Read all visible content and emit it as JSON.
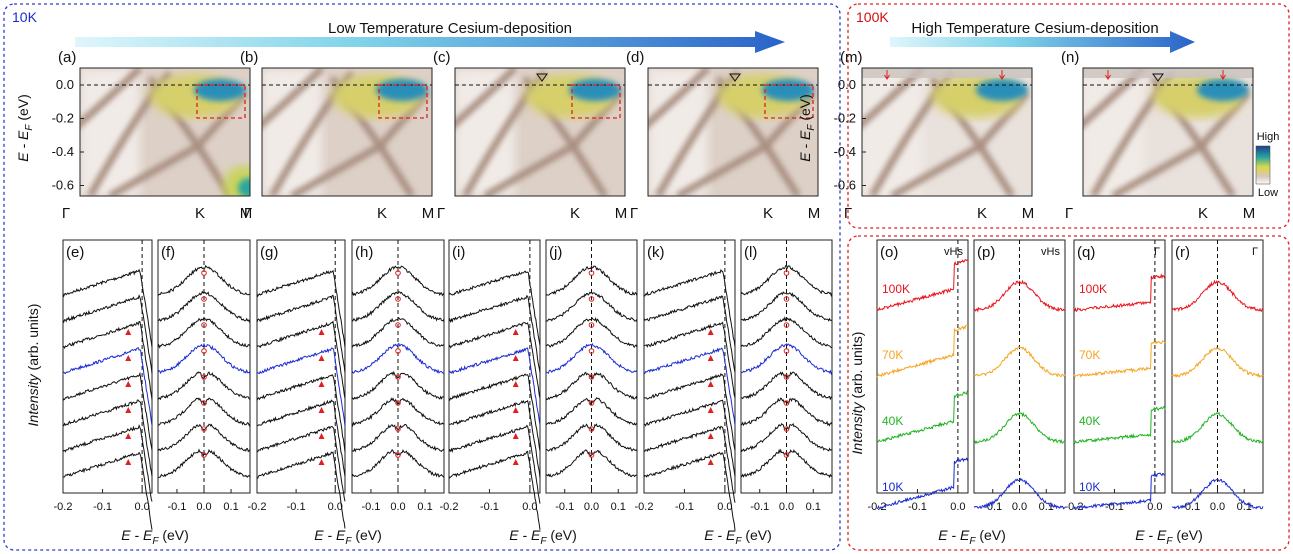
{
  "left_group": {
    "temperature": "10K",
    "title": "Low Temperature Cesium-deposition"
  },
  "right_group": {
    "temperature": "100K",
    "title": "High Temperature Cesium-deposition"
  },
  "dispersion": {
    "panels": [
      "(a)",
      "(b)",
      "(c)",
      "(d)",
      "(m)",
      "(n)"
    ],
    "y_axis_label": {
      "a": "E - E",
      "sub": "F",
      "b": " (eV)"
    },
    "y_ticks": [
      "0.0",
      "-0.2",
      "-0.4",
      "-0.6"
    ],
    "k_points": [
      "Γ",
      "K",
      "M"
    ],
    "colorbar": {
      "high": "High",
      "low": "Low"
    }
  },
  "edc": {
    "panels": [
      "(e)",
      "(f)",
      "(g)",
      "(h)",
      "(i)",
      "(j)",
      "(k)",
      "(l)"
    ],
    "x_ticks_left": [
      "-0.2",
      "-0.1",
      "0.0"
    ],
    "x_ticks_right": [
      "-0.1",
      "0.0",
      "0.1"
    ],
    "x_axis_label": {
      "a": "E - E",
      "sub": "F",
      "b": " (eV)"
    },
    "y_axis_label": {
      "a": "Intensity",
      "b": " (arb. units)"
    }
  },
  "temperature_edc": {
    "panels": [
      {
        "label": "(o)",
        "annotation": "vHs"
      },
      {
        "label": "(p)",
        "annotation": "vHs"
      },
      {
        "label": "(q)",
        "annotation": "Γ"
      },
      {
        "label": "(r)",
        "annotation": "Γ"
      }
    ],
    "temperatures": [
      "100K",
      "70K",
      "40K",
      "10K"
    ]
  }
}
